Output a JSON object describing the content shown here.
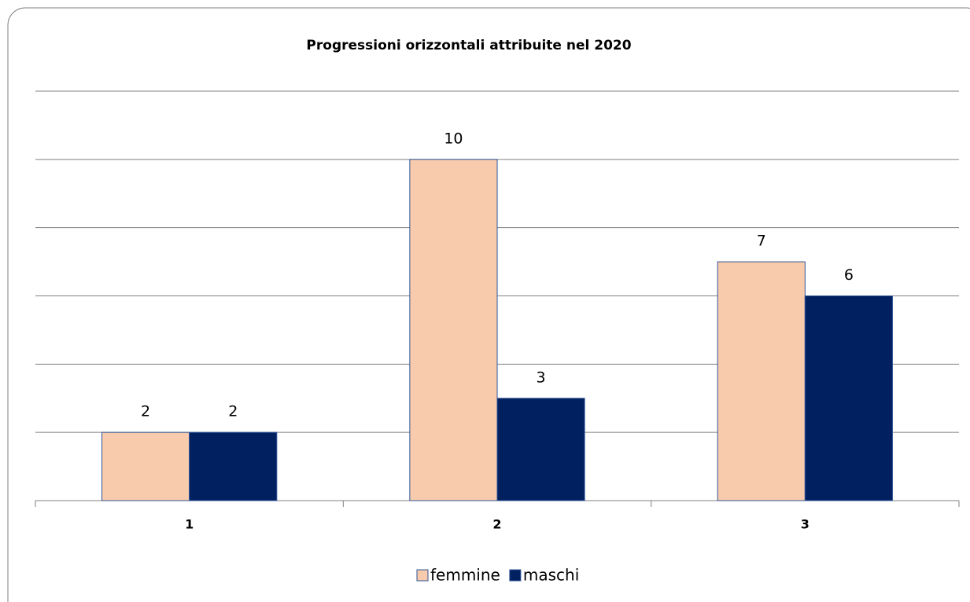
{
  "chart_data": {
    "type": "bar",
    "title": "Progressioni orizzontali attribuite nel 2020",
    "categories": [
      "1",
      "2",
      "3"
    ],
    "series": [
      {
        "name": "femmine",
        "color": "#f8cbad",
        "values": [
          2,
          10,
          7
        ]
      },
      {
        "name": "maschi",
        "color": "#002060",
        "values": [
          2,
          3,
          6
        ]
      }
    ],
    "ylim": [
      0,
      12
    ],
    "yticks": [
      0,
      2,
      4,
      6,
      8,
      10,
      12
    ],
    "grid": true,
    "legend": "bottom"
  }
}
